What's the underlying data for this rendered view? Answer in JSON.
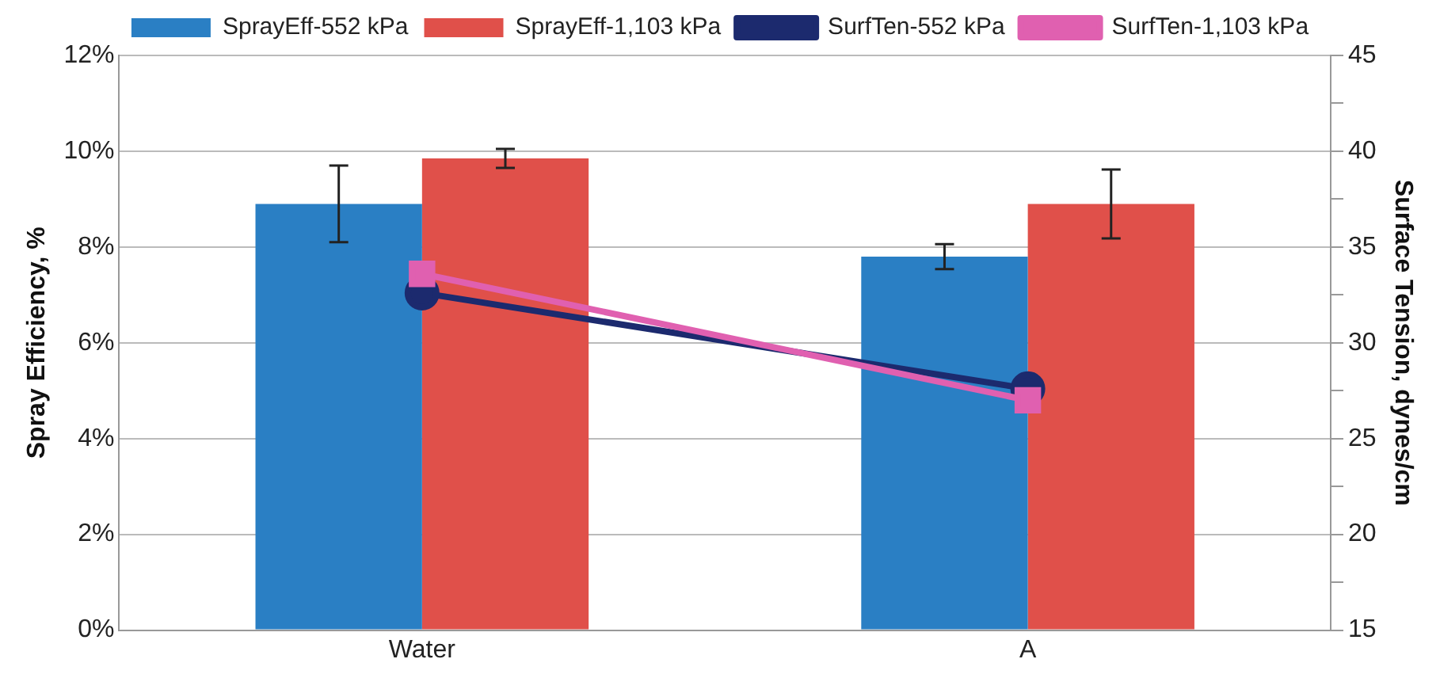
{
  "chart_data": {
    "type": "bar",
    "categories": [
      "Water",
      "A"
    ],
    "ylabel": "Spray Efficiency, %",
    "y2label": "Surface Tension, dynes/cm",
    "ylim": [
      0,
      12
    ],
    "yticks": [
      {
        "value": 0,
        "label": "0%"
      },
      {
        "value": 2,
        "label": "2%"
      },
      {
        "value": 4,
        "label": "4%"
      },
      {
        "value": 6,
        "label": "6%"
      },
      {
        "value": 8,
        "label": "8%"
      },
      {
        "value": 10,
        "label": "10%"
      },
      {
        "value": 12,
        "label": "12%"
      }
    ],
    "y2lim": [
      15,
      45
    ],
    "y2ticks": [
      15,
      {
        "value": 17.5,
        "label": null
      },
      20,
      {
        "value": 22.5,
        "label": null
      },
      25,
      {
        "value": 27.5,
        "label": null
      },
      30,
      {
        "value": 32.5,
        "label": null
      },
      35,
      {
        "value": 37.5,
        "label": null
      },
      40,
      {
        "value": 42.5,
        "label": null
      },
      45
    ],
    "grid": "y",
    "legend": "top",
    "series": [
      {
        "name": "SprayEff-552 kPa",
        "color": "#2a7fc4",
        "values": [
          8.9,
          7.8
        ],
        "errors": [
          0.8,
          0.26
        ]
      },
      {
        "name": "SprayEff-1,103 kPa",
        "color": "#e0504a",
        "values": [
          9.85,
          8.9
        ],
        "errors": [
          0.2,
          0.72
        ]
      },
      {
        "name": "SurfTen-552 kPa",
        "type": "line",
        "axis": "y2",
        "color": "#1c2a6e",
        "marker": "circle",
        "values": [
          32.6,
          27.6
        ]
      },
      {
        "name": "SurfTen-1,103 kPa",
        "type": "line",
        "axis": "y2",
        "color": "#e060b0",
        "marker": "square",
        "values": [
          33.6,
          27.0
        ]
      }
    ]
  }
}
